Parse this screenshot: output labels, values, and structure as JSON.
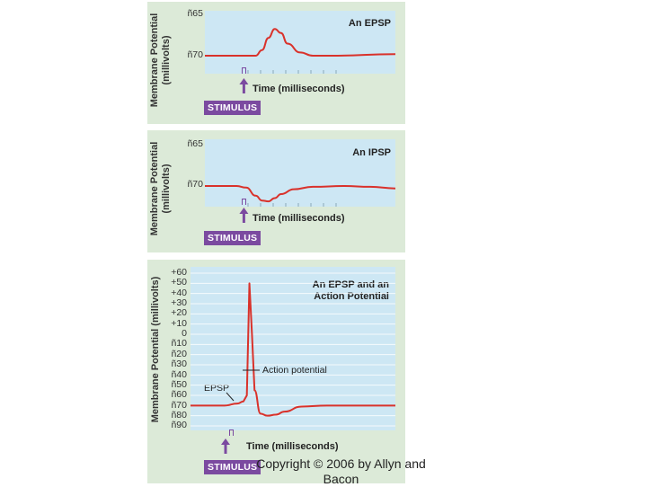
{
  "colors": {
    "panel": "#dcead8",
    "plot": "#cde7f4",
    "trace": "#d9322b",
    "stimulus": "#7b4aa0",
    "arrow": "#7b4aa0"
  },
  "chart_data": [
    {
      "type": "line",
      "title": "An EPSP",
      "ylabel": "Membrane Potential\n(millivolts)",
      "ylabel_line1": "Membrane Potential",
      "ylabel_line2": "(millivolts)",
      "xlabel": "Time (milliseconds)",
      "yticks": [
        "ñ65",
        "ñ70"
      ],
      "ylim": [
        -72,
        -64
      ],
      "series": [
        {
          "x": [
            0,
            5,
            8,
            9,
            10,
            11,
            12,
            13,
            15,
            17,
            20,
            30
          ],
          "values": [
            -70,
            -70,
            -70,
            -69.3,
            -67.8,
            -66.7,
            -67.2,
            -68.5,
            -69.6,
            -70,
            -70,
            -69.8
          ]
        }
      ],
      "stimulus_label": "STIMULUS",
      "stimulus_x": 6
    },
    {
      "type": "line",
      "title": "An IPSP",
      "ylabel": "Membrane Potential\n(millivolts)",
      "ylabel_line1": "Membrane Potential",
      "ylabel_line2": "(millivolts)",
      "xlabel": "Time (milliseconds)",
      "yticks": [
        "ñ65",
        "ñ70"
      ],
      "ylim": [
        -72,
        -64
      ],
      "series": [
        {
          "x": [
            0,
            5,
            6.5,
            8,
            9,
            10,
            11,
            12,
            14,
            17,
            22,
            26,
            30
          ],
          "values": [
            -70,
            -70,
            -70.2,
            -71.2,
            -71.8,
            -71.9,
            -71.5,
            -71,
            -70.4,
            -70.1,
            -70,
            -70.1,
            -70.3
          ]
        }
      ],
      "stimulus_label": "STIMULUS",
      "stimulus_x": 6
    },
    {
      "type": "line",
      "title": "An EPSP and an\nAction Potential",
      "title_line1": "An EPSP and an",
      "title_line2": "Action Potential",
      "ylabel": "Membrane Potential (millivolts)",
      "xlabel": "Time (milliseconds)",
      "yticks": [
        "+60",
        "+50",
        "+40",
        "+30",
        "+20",
        "+10",
        "0",
        "ñ10",
        "ñ20",
        "ñ30",
        "ñ40",
        "ñ50",
        "ñ60",
        "ñ70",
        "ñ80",
        "ñ90"
      ],
      "ylim": [
        -95,
        62
      ],
      "series": [
        {
          "x": [
            0,
            4,
            5.5,
            6.2,
            6.6,
            6.9,
            7.2,
            7.5,
            8.2,
            9,
            10,
            11,
            13,
            16,
            24
          ],
          "values": [
            -70,
            -70,
            -68,
            -66,
            -60,
            50,
            0,
            -55,
            -78,
            -80,
            -79,
            -76,
            -71,
            -70,
            -70
          ]
        }
      ],
      "annotations": [
        "Action potential",
        "EPSP"
      ],
      "stimulus_label": "STIMULUS",
      "stimulus_x": 4
    }
  ],
  "footer": {
    "copyright_line1": "Copyright © 2006 by Allyn and",
    "copyright_line2": "Bacon"
  }
}
